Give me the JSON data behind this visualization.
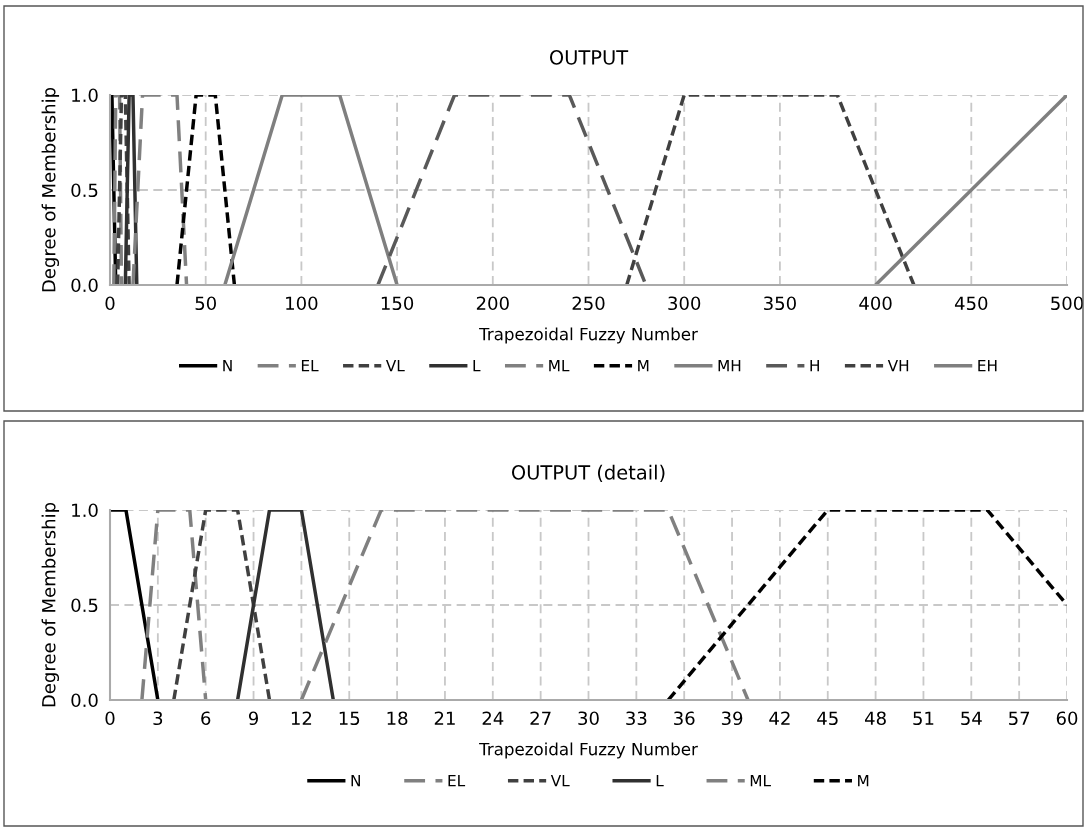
{
  "chart_data": [
    {
      "type": "line",
      "title": "OUTPUT",
      "xlabel": "Trapezoidal Fuzzy Number",
      "ylabel": "Degree of Membership",
      "xlim": [
        0,
        500
      ],
      "xticks": [
        0,
        50,
        100,
        150,
        200,
        250,
        300,
        350,
        400,
        450,
        500
      ],
      "ylim": [
        0,
        1
      ],
      "yticks": [
        {
          "value": 0,
          "label": "0.0"
        },
        {
          "value": 0.5,
          "label": "0.5"
        },
        {
          "value": 1,
          "label": "1.0"
        }
      ],
      "grid": true,
      "legend": "bottom",
      "series": [
        {
          "name": "N",
          "color": "#000000",
          "line_style": "solid",
          "x": [
            0,
            1,
            3
          ],
          "values": [
            1,
            1,
            0
          ]
        },
        {
          "name": "EL",
          "color": "#808080",
          "line_style": "dashed",
          "x": [
            2,
            3,
            5,
            6
          ],
          "values": [
            0,
            1,
            1,
            0
          ]
        },
        {
          "name": "VL",
          "color": "#404040",
          "line_style": "dotted",
          "x": [
            4,
            6,
            8,
            10
          ],
          "values": [
            0,
            1,
            1,
            0
          ]
        },
        {
          "name": "L",
          "color": "#303030",
          "line_style": "solid",
          "x": [
            8,
            10,
            12,
            14
          ],
          "values": [
            0,
            1,
            1,
            0
          ]
        },
        {
          "name": "ML",
          "color": "#808080",
          "line_style": "dashed",
          "x": [
            12,
            17,
            35,
            40
          ],
          "values": [
            0,
            1,
            1,
            0
          ]
        },
        {
          "name": "M",
          "color": "#000000",
          "line_style": "dotted",
          "x": [
            35,
            45,
            55,
            65
          ],
          "values": [
            0,
            1,
            1,
            0
          ]
        },
        {
          "name": "MH",
          "color": "#7f7f7f",
          "line_style": "solid",
          "x": [
            60,
            90,
            120,
            150
          ],
          "values": [
            0,
            1,
            1,
            0
          ]
        },
        {
          "name": "H",
          "color": "#595959",
          "line_style": "dashed",
          "x": [
            140,
            180,
            240,
            280
          ],
          "values": [
            0,
            1,
            1,
            0
          ]
        },
        {
          "name": "VH",
          "color": "#404040",
          "line_style": "dotted",
          "x": [
            270,
            300,
            380,
            420
          ],
          "values": [
            0,
            1,
            1,
            0
          ]
        },
        {
          "name": "EH",
          "color": "#7f7f7f",
          "line_style": "solid",
          "x": [
            400,
            500
          ],
          "values": [
            0,
            1
          ]
        }
      ]
    },
    {
      "type": "line",
      "title": "OUTPUT (detail)",
      "xlabel": "Trapezoidal Fuzzy Number",
      "ylabel": "Degree of Membership",
      "xlim": [
        0,
        60
      ],
      "xticks": [
        0,
        3,
        6,
        9,
        12,
        15,
        18,
        21,
        24,
        27,
        30,
        33,
        36,
        39,
        42,
        45,
        48,
        51,
        54,
        57,
        60
      ],
      "ylim": [
        0,
        1
      ],
      "yticks": [
        {
          "value": 0,
          "label": "0.0"
        },
        {
          "value": 0.5,
          "label": "0.5"
        },
        {
          "value": 1,
          "label": "1.0"
        }
      ],
      "grid": true,
      "legend": "bottom",
      "series": [
        {
          "name": "N",
          "color": "#000000",
          "line_style": "solid",
          "x": [
            0,
            1,
            3
          ],
          "values": [
            1,
            1,
            0
          ]
        },
        {
          "name": "EL",
          "color": "#808080",
          "line_style": "dashed",
          "x": [
            2,
            3,
            5,
            6
          ],
          "values": [
            0,
            1,
            1,
            0
          ]
        },
        {
          "name": "VL",
          "color": "#404040",
          "line_style": "dotted",
          "x": [
            4,
            6,
            8,
            10
          ],
          "values": [
            0,
            1,
            1,
            0
          ]
        },
        {
          "name": "L",
          "color": "#303030",
          "line_style": "solid",
          "x": [
            8,
            10,
            12,
            14
          ],
          "values": [
            0,
            1,
            1,
            0
          ]
        },
        {
          "name": "ML",
          "color": "#808080",
          "line_style": "dashed",
          "x": [
            12,
            17,
            35,
            40
          ],
          "values": [
            0,
            1,
            1,
            0
          ]
        },
        {
          "name": "M",
          "color": "#000000",
          "line_style": "dotted",
          "x": [
            35,
            45,
            55,
            60
          ],
          "values": [
            0,
            1,
            1,
            0.5
          ]
        }
      ]
    }
  ]
}
